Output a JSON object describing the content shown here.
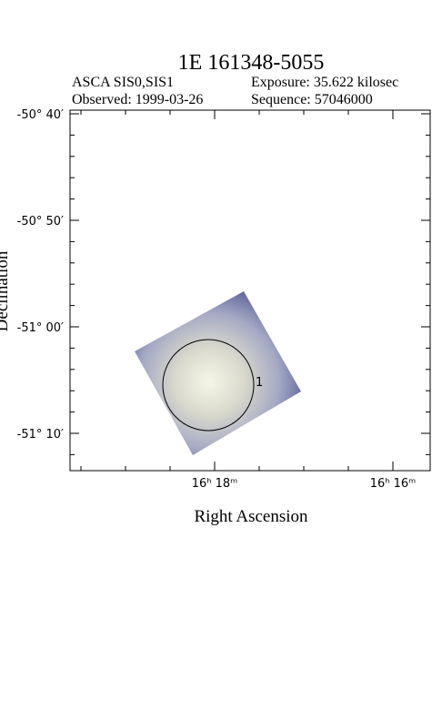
{
  "title": "1E 161348-5055",
  "info": {
    "instrument": "ASCA SIS0,SIS1",
    "exposure": "Exposure: 35.622 kilosec",
    "observed": "Observed: 1999-03-26",
    "sequence": "Sequence: 57046000"
  },
  "axes": {
    "x_label": "Right Ascension",
    "y_label": "Declination",
    "x_ticks": [
      "16ʰ 18ᵐ",
      "16ʰ 16ᵐ"
    ],
    "y_ticks": [
      "-50° 40′",
      "-50° 50′",
      "-51° 00′",
      "-51° 10′"
    ]
  },
  "regions": [
    {
      "label": "1"
    }
  ]
}
